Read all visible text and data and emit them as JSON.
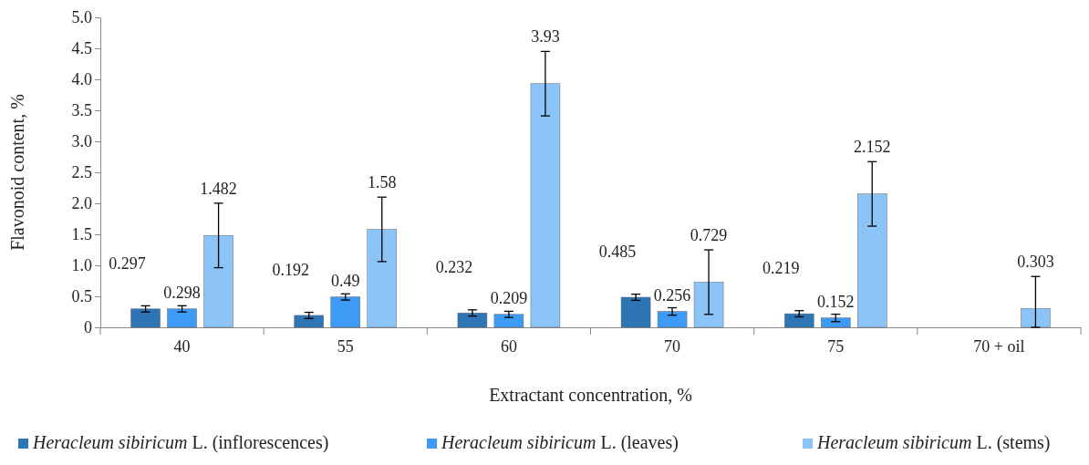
{
  "chart_data": {
    "type": "bar",
    "xlabel": "Extractant concentration, %",
    "ylabel": "Flavonoid content, %",
    "categories": [
      "40",
      "55",
      "60",
      "70",
      "75",
      "70 + oil"
    ],
    "series": [
      {
        "name": "Heracleum sibiricum L. (inflorescences)",
        "color": "#2e75b6",
        "values": [
          0.297,
          0.192,
          0.232,
          0.485,
          0.219,
          null
        ],
        "errors": [
          0.05,
          0.05,
          0.05,
          0.05,
          0.05,
          null
        ]
      },
      {
        "name": "Heracleum sibiricum L. (leaves)",
        "color": "#3d9bf5",
        "values": [
          0.298,
          0.49,
          0.209,
          0.256,
          0.152,
          null
        ],
        "errors": [
          0.05,
          0.05,
          0.05,
          0.06,
          0.06,
          null
        ]
      },
      {
        "name": "Heracleum sibiricum L. (stems)",
        "color": "#8cc4f7",
        "values": [
          1.482,
          1.58,
          3.93,
          0.729,
          2.152,
          0.303
        ],
        "errors": [
          0.52,
          0.52,
          0.52,
          0.52,
          0.52,
          [
            0,
            0.82
          ]
        ]
      }
    ],
    "ylim": [
      0,
      5
    ],
    "yticks": [
      0,
      0.5,
      {
        "value": 1,
        "label": "1.0"
      },
      1.5,
      {
        "value": 2,
        "label": "2.0"
      },
      2.5,
      {
        "value": 3,
        "label": "3.0"
      },
      3.5,
      {
        "value": 4,
        "label": "4.0"
      },
      4.5,
      {
        "value": 5,
        "label": "5.0"
      }
    ],
    "data_labels": true,
    "legend": "bottom",
    "grid": false
  }
}
